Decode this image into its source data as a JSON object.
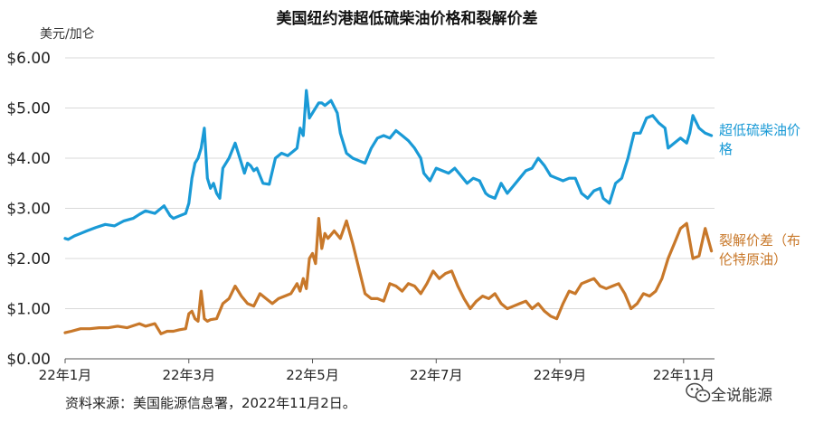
{
  "chart_data": {
    "type": "line",
    "title": "美国纽约港超低硫柴油价格和裂解价差",
    "ylabel": "美元/加仑",
    "ylim": [
      0,
      6
    ],
    "yticks": [
      "$0.00",
      "$1.00",
      "$2.00",
      "$3.00",
      "$4.00",
      "$5.00",
      "$6.00"
    ],
    "ytick_values": [
      0,
      1,
      2,
      3,
      4,
      5,
      6
    ],
    "x_axis": {
      "range": [
        0,
        10.5
      ],
      "ticks": [
        {
          "month": 0,
          "label": "22年1月"
        },
        {
          "month": 2,
          "label": "22年3月"
        },
        {
          "month": 4,
          "label": "22年5月"
        },
        {
          "month": 6,
          "label": "22年7月"
        },
        {
          "month": 8,
          "label": "22年9月"
        },
        {
          "month": 10,
          "label": "22年11月"
        }
      ]
    },
    "grid": true,
    "legend_placement": "right",
    "series": [
      {
        "name": "超低硫柴油价格",
        "color": "#1a9ad6",
        "x": [
          0,
          0.05,
          0.15,
          0.25,
          0.35,
          0.5,
          0.65,
          0.8,
          0.95,
          1.1,
          1.2,
          1.3,
          1.45,
          1.6,
          1.7,
          1.75,
          1.85,
          1.95,
          2.0,
          2.05,
          2.1,
          2.15,
          2.2,
          2.25,
          2.3,
          2.35,
          2.4,
          2.45,
          2.5,
          2.55,
          2.65,
          2.75,
          2.85,
          2.9,
          2.95,
          3.0,
          3.05,
          3.1,
          3.2,
          3.3,
          3.4,
          3.5,
          3.6,
          3.7,
          3.75,
          3.8,
          3.85,
          3.9,
          3.95,
          4.0,
          4.05,
          4.1,
          4.15,
          4.2,
          4.3,
          4.4,
          4.45,
          4.55,
          4.65,
          4.75,
          4.85,
          4.95,
          5.05,
          5.15,
          5.25,
          5.35,
          5.45,
          5.55,
          5.65,
          5.75,
          5.8,
          5.9,
          6.0,
          6.1,
          6.2,
          6.3,
          6.4,
          6.5,
          6.6,
          6.7,
          6.8,
          6.85,
          6.95,
          7.05,
          7.15,
          7.25,
          7.35,
          7.45,
          7.55,
          7.65,
          7.75,
          7.85,
          7.95,
          8.05,
          8.15,
          8.25,
          8.35,
          8.45,
          8.55,
          8.65,
          8.7,
          8.8,
          8.9,
          9.0,
          9.1,
          9.2,
          9.3,
          9.4,
          9.5,
          9.6,
          9.7,
          9.75,
          9.85,
          9.95,
          10.05,
          10.1,
          10.15,
          10.25,
          10.35,
          10.45
        ],
        "values": [
          2.4,
          2.38,
          2.45,
          2.5,
          2.55,
          2.62,
          2.68,
          2.65,
          2.75,
          2.8,
          2.88,
          2.95,
          2.9,
          3.05,
          2.85,
          2.8,
          2.85,
          2.9,
          3.1,
          3.6,
          3.9,
          4.0,
          4.2,
          4.6,
          3.6,
          3.4,
          3.5,
          3.3,
          3.2,
          3.8,
          4.0,
          4.3,
          3.9,
          3.7,
          3.9,
          3.85,
          3.75,
          3.8,
          3.5,
          3.48,
          4.0,
          4.1,
          4.05,
          4.15,
          4.2,
          4.6,
          4.45,
          5.35,
          4.8,
          4.9,
          5.0,
          5.1,
          5.1,
          5.05,
          5.15,
          4.9,
          4.5,
          4.1,
          4.0,
          3.95,
          3.9,
          4.2,
          4.4,
          4.45,
          4.4,
          4.55,
          4.45,
          4.35,
          4.2,
          4.0,
          3.7,
          3.55,
          3.8,
          3.75,
          3.7,
          3.8,
          3.65,
          3.5,
          3.6,
          3.55,
          3.3,
          3.25,
          3.2,
          3.5,
          3.3,
          3.45,
          3.6,
          3.75,
          3.8,
          4.0,
          3.85,
          3.65,
          3.6,
          3.55,
          3.6,
          3.6,
          3.3,
          3.2,
          3.35,
          3.4,
          3.2,
          3.1,
          3.5,
          3.6,
          4.0,
          4.5,
          4.5,
          4.8,
          4.85,
          4.7,
          4.6,
          4.2,
          4.3,
          4.4,
          4.3,
          4.5,
          4.85,
          4.6,
          4.5,
          4.45
        ]
      },
      {
        "name": "裂解价差（布伦特原油）",
        "color": "#c8782a",
        "x": [
          0,
          0.1,
          0.25,
          0.4,
          0.55,
          0.7,
          0.85,
          1.0,
          1.1,
          1.2,
          1.3,
          1.45,
          1.55,
          1.65,
          1.75,
          1.85,
          1.95,
          2.0,
          2.05,
          2.1,
          2.15,
          2.2,
          2.25,
          2.3,
          2.35,
          2.45,
          2.55,
          2.65,
          2.75,
          2.85,
          2.95,
          3.05,
          3.15,
          3.25,
          3.35,
          3.45,
          3.55,
          3.65,
          3.75,
          3.8,
          3.85,
          3.9,
          3.95,
          4.0,
          4.05,
          4.1,
          4.15,
          4.2,
          4.25,
          4.35,
          4.45,
          4.55,
          4.65,
          4.75,
          4.85,
          4.95,
          5.05,
          5.15,
          5.25,
          5.35,
          5.45,
          5.55,
          5.65,
          5.75,
          5.85,
          5.95,
          6.05,
          6.15,
          6.25,
          6.35,
          6.45,
          6.55,
          6.65,
          6.75,
          6.85,
          6.95,
          7.05,
          7.15,
          7.25,
          7.35,
          7.45,
          7.55,
          7.65,
          7.75,
          7.85,
          7.95,
          8.05,
          8.15,
          8.25,
          8.35,
          8.45,
          8.55,
          8.65,
          8.75,
          8.85,
          8.95,
          9.05,
          9.15,
          9.25,
          9.35,
          9.45,
          9.55,
          9.65,
          9.75,
          9.85,
          9.95,
          10.05,
          10.15,
          10.25,
          10.35,
          10.45
        ],
        "values": [
          0.52,
          0.55,
          0.6,
          0.6,
          0.62,
          0.62,
          0.65,
          0.62,
          0.66,
          0.7,
          0.65,
          0.7,
          0.5,
          0.55,
          0.55,
          0.58,
          0.6,
          0.9,
          0.95,
          0.8,
          0.75,
          1.35,
          0.8,
          0.75,
          0.78,
          0.8,
          1.1,
          1.2,
          1.45,
          1.25,
          1.1,
          1.05,
          1.3,
          1.2,
          1.1,
          1.2,
          1.25,
          1.3,
          1.5,
          1.35,
          1.6,
          1.4,
          2.0,
          2.1,
          1.9,
          2.8,
          2.2,
          2.5,
          2.4,
          2.55,
          2.4,
          2.75,
          2.3,
          1.8,
          1.3,
          1.2,
          1.2,
          1.15,
          1.5,
          1.45,
          1.35,
          1.5,
          1.45,
          1.3,
          1.5,
          1.75,
          1.6,
          1.7,
          1.75,
          1.45,
          1.2,
          1.0,
          1.15,
          1.25,
          1.2,
          1.3,
          1.1,
          1.0,
          1.05,
          1.1,
          1.15,
          1.0,
          1.1,
          0.95,
          0.85,
          0.8,
          1.1,
          1.35,
          1.3,
          1.5,
          1.55,
          1.6,
          1.45,
          1.4,
          1.45,
          1.5,
          1.3,
          1.0,
          1.1,
          1.3,
          1.25,
          1.35,
          1.6,
          2.0,
          2.3,
          2.6,
          2.7,
          2.0,
          2.05,
          2.6,
          2.15
        ]
      }
    ],
    "legend": [
      {
        "lines": [
          "超低硫柴油价",
          "格"
        ],
        "color": "#1a9ad6"
      },
      {
        "lines": [
          "裂解价差（布",
          "伦特原油）"
        ],
        "color": "#c8782a"
      }
    ]
  },
  "source": "资料来源：美国能源信息署，2022年11月2日。",
  "watermark": "全说能源",
  "watermark_icon": "wechat-icon"
}
